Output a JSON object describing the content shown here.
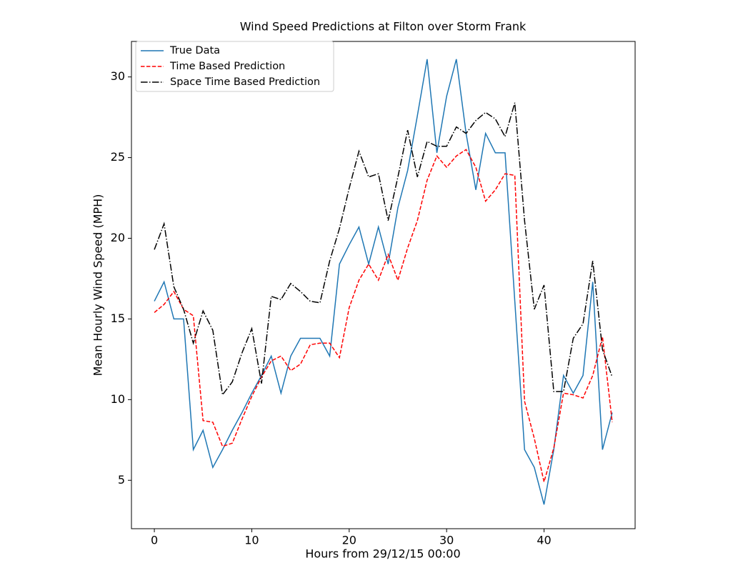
{
  "chart_data": {
    "type": "line",
    "title": "Wind Speed Predictions at Filton over Storm Frank",
    "xlabel": "Hours from 29/12/15 00:00",
    "ylabel": "Mean Hourly Wind Speed (MPH)",
    "x": [
      0,
      1,
      2,
      3,
      4,
      5,
      6,
      7,
      8,
      9,
      10,
      11,
      12,
      13,
      14,
      15,
      16,
      17,
      18,
      19,
      20,
      21,
      22,
      23,
      24,
      25,
      26,
      27,
      28,
      29,
      30,
      31,
      32,
      33,
      34,
      35,
      36,
      37,
      38,
      39,
      40,
      41,
      42,
      43,
      44,
      45,
      46,
      47
    ],
    "series": [
      {
        "name": "True Data",
        "color": "#1f77b4",
        "linestyle": "solid",
        "values": [
          16.1,
          17.3,
          15.0,
          15.0,
          6.9,
          8.1,
          5.8,
          6.9,
          8.1,
          9.2,
          10.4,
          11.5,
          12.7,
          10.4,
          12.7,
          13.8,
          13.8,
          13.8,
          12.7,
          18.4,
          19.6,
          20.7,
          18.4,
          20.7,
          18.4,
          21.9,
          24.2,
          27.6,
          31.1,
          25.3,
          28.8,
          31.1,
          26.5,
          23.0,
          26.5,
          25.3,
          25.3,
          16.1,
          6.9,
          5.8,
          3.5,
          6.9,
          11.5,
          10.4,
          11.5,
          17.3,
          6.9,
          9.2
        ]
      },
      {
        "name": "Time Based Prediction",
        "color": "#ff0000",
        "linestyle": "dashed",
        "values": [
          15.4,
          15.9,
          16.7,
          15.6,
          15.2,
          8.7,
          8.6,
          7.1,
          7.3,
          8.8,
          10.2,
          11.4,
          12.4,
          12.7,
          11.8,
          12.2,
          13.4,
          13.5,
          13.5,
          12.6,
          15.7,
          17.4,
          18.4,
          17.4,
          19.0,
          17.4,
          19.4,
          21.1,
          23.6,
          25.1,
          24.4,
          25.1,
          25.5,
          24.4,
          22.3,
          23.0,
          24.0,
          23.9,
          9.9,
          7.6,
          4.9,
          7.0,
          10.4,
          10.3,
          10.1,
          11.5,
          13.9,
          8.6
        ]
      },
      {
        "name": "Space Time Based Prediction",
        "color": "#000000",
        "linestyle": "dashdot",
        "values": [
          19.3,
          20.9,
          17.0,
          15.6,
          13.5,
          15.5,
          14.3,
          10.3,
          11.1,
          12.9,
          14.4,
          11.0,
          16.4,
          16.2,
          17.2,
          16.7,
          16.1,
          16.0,
          18.6,
          20.6,
          23.1,
          25.4,
          23.8,
          24.0,
          21.1,
          23.8,
          26.7,
          23.8,
          26.0,
          25.7,
          25.7,
          26.9,
          26.5,
          27.3,
          27.8,
          27.4,
          26.3,
          28.4,
          21.1,
          15.6,
          17.1,
          10.5,
          10.5,
          13.8,
          14.7,
          18.6,
          13.1,
          11.4
        ]
      }
    ],
    "xlim": [
      -2.35,
      49.35
    ],
    "xticks": [
      0,
      10,
      20,
      30,
      40
    ],
    "ylim": [
      2.0,
      32.2
    ],
    "yticks": [
      5,
      10,
      15,
      20,
      25,
      30
    ],
    "legend": "upper left"
  }
}
